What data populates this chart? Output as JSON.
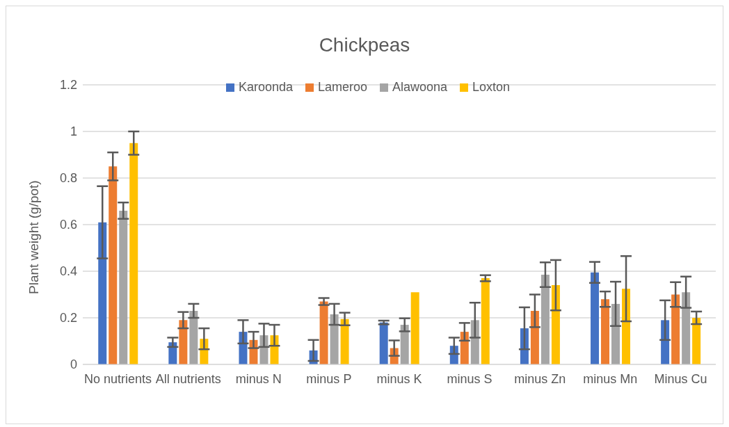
{
  "chart_data": {
    "type": "bar",
    "title": "Chickpeas",
    "ylabel": "Plant weight (g/pot)",
    "categories": [
      "No nutrients",
      "All nutrients",
      "minus N",
      "minus P",
      "minus K",
      "minus S",
      "minus Zn",
      "minus Mn",
      "Minus Cu"
    ],
    "series": [
      {
        "name": "Karoonda",
        "color": "#4472c4",
        "values": [
          0.61,
          0.095,
          0.14,
          0.06,
          0.18,
          0.08,
          0.155,
          0.395,
          0.19
        ],
        "errors": [
          0.155,
          0.02,
          0.05,
          0.045,
          0.008,
          0.035,
          0.09,
          0.045,
          0.085
        ]
      },
      {
        "name": "Lameroo",
        "color": "#ed7d31",
        "values": [
          0.85,
          0.19,
          0.105,
          0.27,
          0.07,
          0.14,
          0.23,
          0.28,
          0.3
        ],
        "errors": [
          0.06,
          0.035,
          0.035,
          0.015,
          0.033,
          0.038,
          0.07,
          0.033,
          0.053
        ]
      },
      {
        "name": "Alawoona",
        "color": "#a5a5a5",
        "values": [
          0.66,
          0.23,
          0.125,
          0.215,
          0.17,
          0.19,
          0.385,
          0.26,
          0.31
        ],
        "errors": [
          0.035,
          0.03,
          0.05,
          0.045,
          0.028,
          0.075,
          0.053,
          0.095,
          0.067
        ]
      },
      {
        "name": "Loxton",
        "color": "#ffc000",
        "values": [
          0.95,
          0.11,
          0.125,
          0.195,
          0.31,
          0.37,
          0.34,
          0.325,
          0.2
        ],
        "errors": [
          0.05,
          0.045,
          0.045,
          0.027,
          null,
          0.013,
          0.108,
          0.14,
          0.027
        ]
      }
    ],
    "ylim": [
      0,
      1.2
    ],
    "yticks": [
      0,
      0.2,
      0.4,
      0.6,
      0.8,
      1,
      1.2
    ],
    "grid": "y",
    "legend": "top"
  }
}
